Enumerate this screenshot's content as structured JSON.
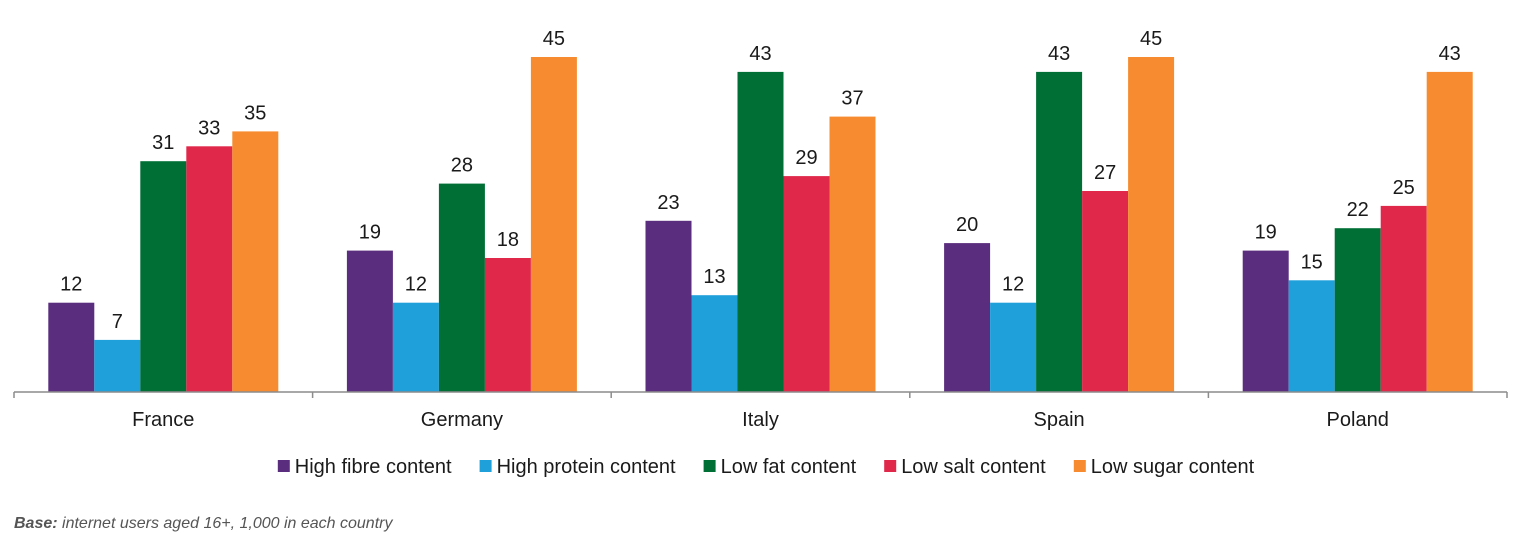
{
  "chart_data": {
    "type": "bar",
    "categories": [
      "France",
      "Germany",
      "Italy",
      "Spain",
      "Poland"
    ],
    "series": [
      {
        "name": "High fibre content",
        "color": "#5b2d7e",
        "values": [
          12,
          19,
          23,
          20,
          19
        ]
      },
      {
        "name": "High protein content",
        "color": "#1fa0db",
        "values": [
          7,
          12,
          13,
          12,
          15
        ]
      },
      {
        "name": "Low fat content",
        "color": "#006f35",
        "values": [
          31,
          28,
          43,
          43,
          22
        ]
      },
      {
        "name": "Low salt content",
        "color": "#e0284a",
        "values": [
          33,
          18,
          29,
          27,
          25
        ]
      },
      {
        "name": "Low sugar content",
        "color": "#f68c2f",
        "values": [
          35,
          45,
          37,
          45,
          43
        ]
      }
    ],
    "ylim": [
      0,
      45
    ],
    "grid": false,
    "legend": "bottom"
  },
  "footnote": {
    "label": "Base:",
    "text": " internet users aged 16+, 1,000 in each country"
  }
}
